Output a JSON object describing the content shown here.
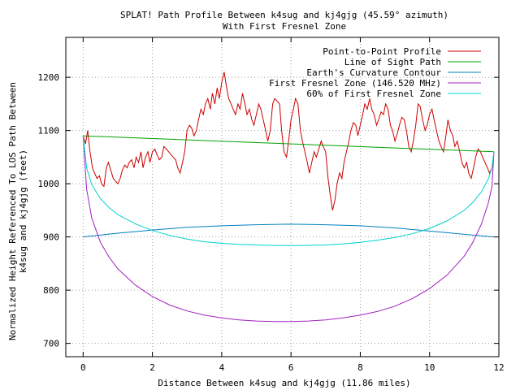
{
  "chart_data": {
    "type": "line",
    "title": "SPLAT! Path Profile Between k4sug and kj4gjg (45.59° azimuth)",
    "subtitle": "With First Fresnel Zone",
    "xlabel": "Distance Between k4sug and kj4gjg (11.86 miles)",
    "ylabel_line1": "Normalized Height Referenced To LOS Path Between",
    "ylabel_line2": "k4sug and kj4gjg (feet)",
    "xlim": [
      -0.5,
      12
    ],
    "ylim": [
      675,
      1275
    ],
    "x_ticks": [
      0,
      2,
      4,
      6,
      8,
      10,
      12
    ],
    "y_ticks": [
      700,
      800,
      900,
      1000,
      1100,
      1200
    ],
    "grid": true,
    "legend_position": "top-right",
    "series": [
      {
        "name": "Point-to-Point Profile",
        "color": "#cc0000",
        "points": [
          [
            0.0,
            1090
          ],
          [
            0.07,
            1075
          ],
          [
            0.13,
            1100
          ],
          [
            0.2,
            1060
          ],
          [
            0.27,
            1030
          ],
          [
            0.33,
            1020
          ],
          [
            0.4,
            1010
          ],
          [
            0.47,
            1015
          ],
          [
            0.53,
            1000
          ],
          [
            0.6,
            995
          ],
          [
            0.67,
            1030
          ],
          [
            0.73,
            1040
          ],
          [
            0.8,
            1025
          ],
          [
            0.87,
            1010
          ],
          [
            0.93,
            1005
          ],
          [
            1.0,
            1000
          ],
          [
            1.07,
            1010
          ],
          [
            1.13,
            1025
          ],
          [
            1.2,
            1035
          ],
          [
            1.27,
            1030
          ],
          [
            1.33,
            1040
          ],
          [
            1.4,
            1045
          ],
          [
            1.47,
            1030
          ],
          [
            1.53,
            1050
          ],
          [
            1.6,
            1040
          ],
          [
            1.67,
            1060
          ],
          [
            1.73,
            1030
          ],
          [
            1.8,
            1050
          ],
          [
            1.87,
            1060
          ],
          [
            1.93,
            1040
          ],
          [
            2.0,
            1060
          ],
          [
            2.07,
            1065
          ],
          [
            2.13,
            1055
          ],
          [
            2.2,
            1045
          ],
          [
            2.27,
            1050
          ],
          [
            2.33,
            1070
          ],
          [
            2.4,
            1065
          ],
          [
            2.47,
            1060
          ],
          [
            2.53,
            1055
          ],
          [
            2.6,
            1050
          ],
          [
            2.67,
            1045
          ],
          [
            2.73,
            1030
          ],
          [
            2.8,
            1020
          ],
          [
            2.87,
            1040
          ],
          [
            2.93,
            1060
          ],
          [
            3.0,
            1100
          ],
          [
            3.07,
            1110
          ],
          [
            3.13,
            1105
          ],
          [
            3.2,
            1090
          ],
          [
            3.27,
            1100
          ],
          [
            3.33,
            1120
          ],
          [
            3.4,
            1140
          ],
          [
            3.47,
            1130
          ],
          [
            3.53,
            1150
          ],
          [
            3.6,
            1160
          ],
          [
            3.67,
            1140
          ],
          [
            3.73,
            1170
          ],
          [
            3.8,
            1150
          ],
          [
            3.87,
            1180
          ],
          [
            3.93,
            1160
          ],
          [
            4.0,
            1190
          ],
          [
            4.07,
            1210
          ],
          [
            4.13,
            1185
          ],
          [
            4.2,
            1160
          ],
          [
            4.27,
            1150
          ],
          [
            4.33,
            1140
          ],
          [
            4.4,
            1130
          ],
          [
            4.47,
            1150
          ],
          [
            4.53,
            1140
          ],
          [
            4.6,
            1170
          ],
          [
            4.67,
            1150
          ],
          [
            4.73,
            1130
          ],
          [
            4.8,
            1140
          ],
          [
            4.87,
            1120
          ],
          [
            4.93,
            1110
          ],
          [
            5.0,
            1130
          ],
          [
            5.07,
            1150
          ],
          [
            5.13,
            1140
          ],
          [
            5.2,
            1120
          ],
          [
            5.27,
            1100
          ],
          [
            5.33,
            1080
          ],
          [
            5.4,
            1100
          ],
          [
            5.47,
            1150
          ],
          [
            5.53,
            1160
          ],
          [
            5.6,
            1155
          ],
          [
            5.67,
            1150
          ],
          [
            5.73,
            1100
          ],
          [
            5.8,
            1060
          ],
          [
            5.87,
            1050
          ],
          [
            5.93,
            1080
          ],
          [
            6.0,
            1120
          ],
          [
            6.07,
            1140
          ],
          [
            6.13,
            1160
          ],
          [
            6.2,
            1150
          ],
          [
            6.27,
            1100
          ],
          [
            6.33,
            1080
          ],
          [
            6.4,
            1060
          ],
          [
            6.47,
            1040
          ],
          [
            6.53,
            1020
          ],
          [
            6.6,
            1040
          ],
          [
            6.67,
            1060
          ],
          [
            6.73,
            1050
          ],
          [
            6.8,
            1065
          ],
          [
            6.87,
            1080
          ],
          [
            6.93,
            1070
          ],
          [
            7.0,
            1060
          ],
          [
            7.07,
            1010
          ],
          [
            7.13,
            980
          ],
          [
            7.2,
            950
          ],
          [
            7.27,
            970
          ],
          [
            7.33,
            1000
          ],
          [
            7.4,
            1020
          ],
          [
            7.47,
            1010
          ],
          [
            7.53,
            1040
          ],
          [
            7.6,
            1060
          ],
          [
            7.67,
            1080
          ],
          [
            7.73,
            1100
          ],
          [
            7.8,
            1115
          ],
          [
            7.87,
            1110
          ],
          [
            7.93,
            1090
          ],
          [
            8.0,
            1110
          ],
          [
            8.07,
            1130
          ],
          [
            8.13,
            1150
          ],
          [
            8.2,
            1140
          ],
          [
            8.27,
            1160
          ],
          [
            8.33,
            1140
          ],
          [
            8.4,
            1130
          ],
          [
            8.47,
            1110
          ],
          [
            8.53,
            1120
          ],
          [
            8.6,
            1135
          ],
          [
            8.67,
            1130
          ],
          [
            8.73,
            1150
          ],
          [
            8.8,
            1140
          ],
          [
            8.87,
            1110
          ],
          [
            8.93,
            1100
          ],
          [
            9.0,
            1080
          ],
          [
            9.07,
            1095
          ],
          [
            9.13,
            1110
          ],
          [
            9.2,
            1125
          ],
          [
            9.27,
            1120
          ],
          [
            9.33,
            1100
          ],
          [
            9.4,
            1070
          ],
          [
            9.47,
            1060
          ],
          [
            9.53,
            1080
          ],
          [
            9.6,
            1110
          ],
          [
            9.67,
            1150
          ],
          [
            9.73,
            1145
          ],
          [
            9.8,
            1120
          ],
          [
            9.87,
            1100
          ],
          [
            9.93,
            1110
          ],
          [
            10.0,
            1130
          ],
          [
            10.07,
            1140
          ],
          [
            10.13,
            1120
          ],
          [
            10.2,
            1100
          ],
          [
            10.27,
            1080
          ],
          [
            10.33,
            1070
          ],
          [
            10.4,
            1060
          ],
          [
            10.47,
            1090
          ],
          [
            10.53,
            1120
          ],
          [
            10.6,
            1100
          ],
          [
            10.67,
            1090
          ],
          [
            10.73,
            1070
          ],
          [
            10.8,
            1080
          ],
          [
            10.87,
            1060
          ],
          [
            10.93,
            1040
          ],
          [
            11.0,
            1030
          ],
          [
            11.07,
            1040
          ],
          [
            11.13,
            1020
          ],
          [
            11.2,
            1010
          ],
          [
            11.27,
            1030
          ],
          [
            11.33,
            1050
          ],
          [
            11.4,
            1065
          ],
          [
            11.47,
            1060
          ],
          [
            11.53,
            1050
          ],
          [
            11.6,
            1040
          ],
          [
            11.67,
            1030
          ],
          [
            11.73,
            1020
          ],
          [
            11.8,
            1030
          ],
          [
            11.86,
            1060
          ]
        ]
      },
      {
        "name": "Line of Sight Path",
        "color": "#00a000",
        "points": [
          [
            0.0,
            1090
          ],
          [
            11.86,
            1060
          ]
        ]
      },
      {
        "name": "Earth's Curvature Contour",
        "color": "#0080c0",
        "points": [
          [
            0.0,
            900
          ],
          [
            1.0,
            907
          ],
          [
            2.0,
            913
          ],
          [
            3.0,
            918
          ],
          [
            4.0,
            921
          ],
          [
            5.0,
            923
          ],
          [
            5.93,
            924
          ],
          [
            7.0,
            923
          ],
          [
            8.0,
            921
          ],
          [
            9.0,
            917
          ],
          [
            10.0,
            911
          ],
          [
            11.0,
            905
          ],
          [
            11.86,
            900
          ]
        ]
      },
      {
        "name": "First Fresnel Zone (146.520 MHz)",
        "color": "#a020c0",
        "points": [
          [
            0.0,
            1090
          ],
          [
            0.1,
            990
          ],
          [
            0.25,
            935
          ],
          [
            0.5,
            890
          ],
          [
            0.75,
            862
          ],
          [
            1.0,
            840
          ],
          [
            1.5,
            810
          ],
          [
            2.0,
            788
          ],
          [
            2.5,
            772
          ],
          [
            3.0,
            761
          ],
          [
            3.5,
            753
          ],
          [
            4.0,
            748
          ],
          [
            4.5,
            744
          ],
          [
            5.0,
            742
          ],
          [
            5.5,
            741
          ],
          [
            6.0,
            741
          ],
          [
            6.5,
            742
          ],
          [
            7.0,
            744
          ],
          [
            7.5,
            748
          ],
          [
            8.0,
            753
          ],
          [
            8.5,
            760
          ],
          [
            9.0,
            770
          ],
          [
            9.5,
            784
          ],
          [
            10.0,
            803
          ],
          [
            10.5,
            828
          ],
          [
            11.0,
            864
          ],
          [
            11.25,
            890
          ],
          [
            11.5,
            925
          ],
          [
            11.7,
            965
          ],
          [
            11.8,
            995
          ],
          [
            11.86,
            1060
          ]
        ]
      },
      {
        "name": "60% of First Fresnel Zone",
        "color": "#00d0d0",
        "points": [
          [
            0.0,
            1090
          ],
          [
            0.1,
            1030
          ],
          [
            0.25,
            998
          ],
          [
            0.5,
            972
          ],
          [
            0.75,
            955
          ],
          [
            1.0,
            942
          ],
          [
            1.5,
            925
          ],
          [
            2.0,
            912
          ],
          [
            2.5,
            903
          ],
          [
            3.0,
            896
          ],
          [
            3.5,
            891
          ],
          [
            4.0,
            888
          ],
          [
            4.5,
            886
          ],
          [
            5.0,
            885
          ],
          [
            5.5,
            884
          ],
          [
            6.0,
            884
          ],
          [
            6.5,
            884
          ],
          [
            7.0,
            885
          ],
          [
            7.5,
            887
          ],
          [
            8.0,
            890
          ],
          [
            8.5,
            894
          ],
          [
            9.0,
            899
          ],
          [
            9.5,
            906
          ],
          [
            10.0,
            916
          ],
          [
            10.5,
            930
          ],
          [
            11.0,
            950
          ],
          [
            11.25,
            965
          ],
          [
            11.5,
            985
          ],
          [
            11.7,
            1010
          ],
          [
            11.8,
            1030
          ],
          [
            11.86,
            1060
          ]
        ]
      }
    ]
  }
}
